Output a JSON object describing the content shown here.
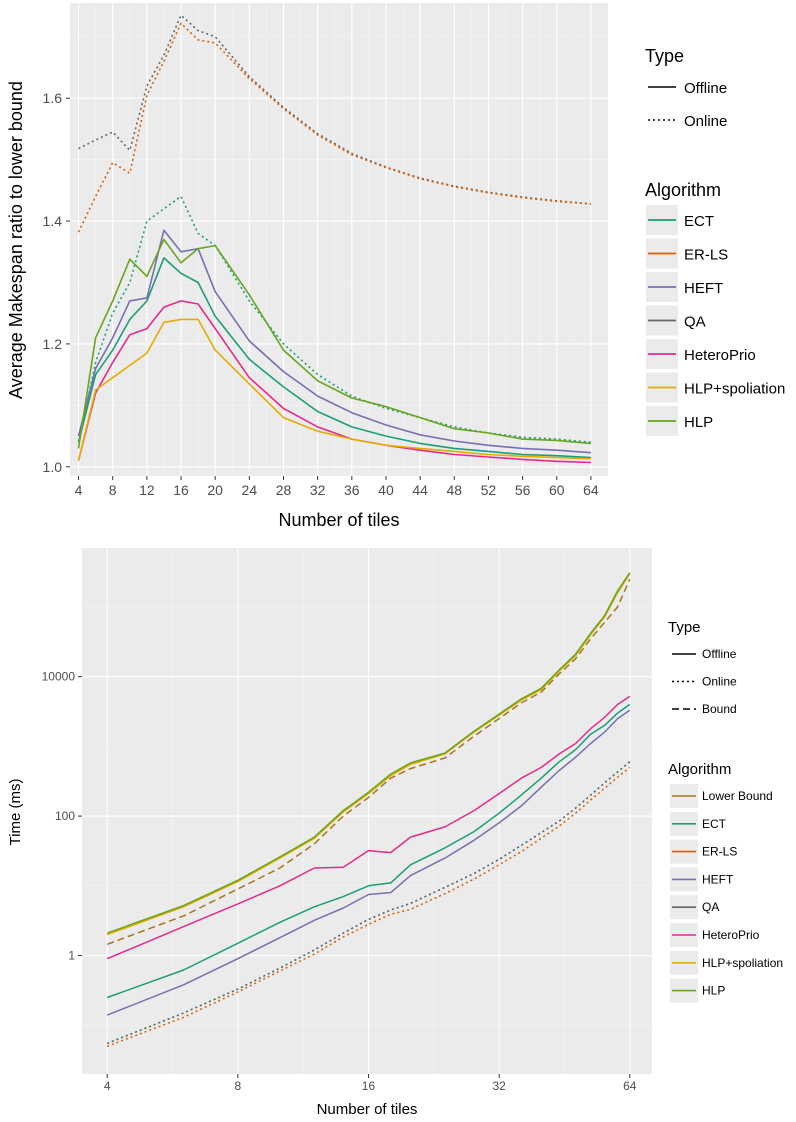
{
  "colors": {
    "panel_bg": "#ebebeb",
    "grid_major": "#ffffff",
    "grid_minor": "#f5f5f5",
    "text": "#000000",
    "tick_text": "#4d4d4d",
    "Lower Bound": "#a6761d",
    "ECT": "#1b9e77",
    "ER-LS": "#d95f02",
    "HEFT": "#7570b3",
    "QA": "#666666",
    "HeteroPrio": "#e7298a",
    "HLP+spoliation": "#e6ab02",
    "HLP": "#66a61e"
  },
  "chart_data": [
    {
      "type": "line",
      "xlabel": "Number of tiles",
      "ylabel": "Average Makespan ratio to lower bound",
      "x_ticks": [
        "4",
        "8",
        "12",
        "16",
        "20",
        "24",
        "28",
        "32",
        "36",
        "40",
        "44",
        "48",
        "52",
        "56",
        "60",
        "64"
      ],
      "x_range": [
        3,
        66
      ],
      "y_ticks": [
        "1.0",
        "1.2",
        "1.4",
        "1.6"
      ],
      "y_range": [
        0.985,
        1.755
      ],
      "grid": true,
      "legend_position": "right",
      "legend_type": {
        "title": "Type",
        "items": [
          {
            "label": "Offline",
            "dash": "solid"
          },
          {
            "label": "Online",
            "dash": "dotted"
          }
        ]
      },
      "legend_algorithm": {
        "title": "Algorithm",
        "items": [
          "ECT",
          "ER-LS",
          "HEFT",
          "QA",
          "HeteroPrio",
          "HLP+spoliation",
          "HLP"
        ]
      },
      "series": [
        {
          "name": "QA",
          "type": "Online",
          "x": [
            4,
            6,
            8,
            10,
            12,
            14,
            16,
            18,
            20,
            24,
            28,
            32,
            36,
            40,
            44,
            48,
            52,
            56,
            60,
            64
          ],
          "y": [
            1.518,
            1.532,
            1.545,
            1.515,
            1.62,
            1.67,
            1.735,
            1.71,
            1.7,
            1.635,
            1.585,
            1.542,
            1.51,
            1.488,
            1.47,
            1.457,
            1.447,
            1.439,
            1.433,
            1.428
          ]
        },
        {
          "name": "ER-LS",
          "type": "Online",
          "x": [
            4,
            6,
            8,
            10,
            12,
            14,
            16,
            18,
            20,
            24,
            28,
            32,
            36,
            40,
            44,
            48,
            52,
            56,
            60,
            64
          ],
          "y": [
            1.382,
            1.44,
            1.495,
            1.478,
            1.605,
            1.66,
            1.722,
            1.695,
            1.69,
            1.632,
            1.583,
            1.54,
            1.508,
            1.487,
            1.469,
            1.456,
            1.446,
            1.438,
            1.432,
            1.428
          ]
        },
        {
          "name": "ECT",
          "type": "Online",
          "x": [
            4,
            6,
            8,
            10,
            12,
            14,
            16,
            18,
            20,
            24,
            28,
            32,
            36,
            40,
            44,
            48,
            52,
            56,
            60,
            64
          ],
          "y": [
            1.04,
            1.17,
            1.25,
            1.3,
            1.4,
            1.42,
            1.44,
            1.38,
            1.36,
            1.27,
            1.2,
            1.15,
            1.115,
            1.095,
            1.08,
            1.065,
            1.055,
            1.048,
            1.045,
            1.04
          ]
        },
        {
          "name": "ECT",
          "type": "Offline",
          "x": [
            4,
            6,
            8,
            10,
            12,
            14,
            16,
            18,
            20,
            24,
            28,
            32,
            36,
            40,
            44,
            48,
            52,
            56,
            60,
            64
          ],
          "y": [
            1.04,
            1.15,
            1.19,
            1.24,
            1.27,
            1.34,
            1.315,
            1.3,
            1.245,
            1.175,
            1.13,
            1.09,
            1.065,
            1.05,
            1.038,
            1.03,
            1.025,
            1.02,
            1.018,
            1.015
          ]
        },
        {
          "name": "HEFT",
          "type": "Offline",
          "x": [
            4,
            6,
            8,
            10,
            12,
            14,
            16,
            18,
            20,
            24,
            28,
            32,
            36,
            40,
            44,
            48,
            52,
            56,
            60,
            64
          ],
          "y": [
            1.05,
            1.16,
            1.21,
            1.27,
            1.275,
            1.385,
            1.35,
            1.355,
            1.285,
            1.205,
            1.155,
            1.115,
            1.088,
            1.068,
            1.052,
            1.042,
            1.035,
            1.03,
            1.027,
            1.023
          ]
        },
        {
          "name": "HeteroPrio",
          "type": "Offline",
          "x": [
            4,
            6,
            8,
            10,
            12,
            14,
            16,
            18,
            20,
            24,
            28,
            32,
            36,
            40,
            44,
            48,
            52,
            56,
            60,
            64
          ],
          "y": [
            1.01,
            1.12,
            1.17,
            1.215,
            1.225,
            1.26,
            1.27,
            1.265,
            1.225,
            1.145,
            1.095,
            1.065,
            1.045,
            1.035,
            1.027,
            1.02,
            1.016,
            1.012,
            1.009,
            1.007
          ]
        },
        {
          "name": "HLP+spoliation",
          "type": "Offline",
          "x": [
            4,
            6,
            8,
            10,
            12,
            14,
            16,
            18,
            20,
            24,
            28,
            32,
            36,
            40,
            44,
            48,
            52,
            56,
            60,
            64
          ],
          "y": [
            1.01,
            1.125,
            1.145,
            1.165,
            1.185,
            1.235,
            1.24,
            1.24,
            1.19,
            1.135,
            1.08,
            1.058,
            1.045,
            1.035,
            1.03,
            1.025,
            1.02,
            1.017,
            1.015,
            1.013
          ]
        },
        {
          "name": "HLP",
          "type": "Offline",
          "x": [
            4,
            6,
            8,
            10,
            12,
            14,
            16,
            18,
            20,
            24,
            28,
            32,
            36,
            40,
            44,
            48,
            52,
            56,
            60,
            64
          ],
          "y": [
            1.03,
            1.21,
            1.27,
            1.338,
            1.31,
            1.37,
            1.332,
            1.355,
            1.36,
            1.28,
            1.19,
            1.14,
            1.112,
            1.098,
            1.08,
            1.062,
            1.055,
            1.045,
            1.043,
            1.038
          ]
        }
      ]
    },
    {
      "type": "line",
      "xlabel": "Number of tiles",
      "ylabel": "Time (ms)",
      "log_x": true,
      "log_y": true,
      "x_ticks": [
        "4",
        "8",
        "16",
        "32",
        "64"
      ],
      "x_range": [
        3.5,
        72
      ],
      "y_ticks": [
        "1",
        "100",
        "10000"
      ],
      "y_range": [
        0.02,
        700000
      ],
      "grid": true,
      "legend_position": "right",
      "legend_type": {
        "title": "Type",
        "items": [
          {
            "label": "Offline",
            "dash": "solid"
          },
          {
            "label": "Online",
            "dash": "dotted"
          },
          {
            "label": "Bound",
            "dash": "dashed"
          }
        ]
      },
      "legend_algorithm": {
        "title": "Algorithm",
        "items": [
          "Lower Bound",
          "ECT",
          "ER-LS",
          "HEFT",
          "QA",
          "HeteroPrio",
          "HLP+spoliation",
          "HLP"
        ]
      },
      "series": [
        {
          "name": "HLP+spoliation",
          "type": "Offline",
          "x": [
            4,
            6,
            8,
            10,
            12,
            14,
            16,
            18,
            20,
            24,
            28,
            32,
            36,
            40,
            44,
            48,
            52,
            56,
            60,
            64
          ],
          "y": [
            2.0,
            5.0,
            11.5,
            25,
            48,
            115,
            210,
            380,
            550,
            780,
            1600,
            2800,
            4600,
            6500,
            12000,
            20000,
            40000,
            72000,
            160000,
            300000
          ]
        },
        {
          "name": "HLP",
          "type": "Offline",
          "x": [
            4,
            6,
            8,
            10,
            12,
            14,
            16,
            18,
            20,
            24,
            28,
            32,
            36,
            40,
            44,
            48,
            52,
            56,
            60,
            64
          ],
          "y": [
            2.1,
            5.2,
            12,
            26,
            50,
            120,
            220,
            400,
            580,
            800,
            1650,
            2900,
            4800,
            6800,
            12500,
            21000,
            42000,
            75000,
            170000,
            310000
          ]
        },
        {
          "name": "Lower Bound",
          "type": "Bound",
          "x": [
            4,
            6,
            8,
            10,
            12,
            14,
            16,
            18,
            20,
            24,
            28,
            32,
            36,
            40,
            44,
            48,
            52,
            56,
            60,
            64
          ],
          "y": [
            1.45,
            3.7,
            9,
            18,
            40,
            100,
            185,
            350,
            480,
            680,
            1400,
            2500,
            4200,
            6000,
            11000,
            18000,
            35000,
            60000,
            100000,
            250000
          ]
        },
        {
          "name": "HeteroPrio",
          "type": "Offline",
          "x": [
            4,
            6,
            8,
            10,
            12,
            14,
            16,
            18,
            20,
            24,
            28,
            32,
            36,
            40,
            44,
            48,
            52,
            56,
            60,
            64
          ],
          "y": [
            0.9,
            2.6,
            5.5,
            10,
            18,
            18.5,
            32,
            30,
            50,
            70,
            120,
            210,
            350,
            500,
            780,
            1100,
            1800,
            2600,
            4000,
            5200
          ]
        },
        {
          "name": "ECT",
          "type": "Offline",
          "x": [
            4,
            6,
            8,
            10,
            12,
            14,
            16,
            18,
            20,
            24,
            28,
            32,
            36,
            40,
            44,
            48,
            52,
            56,
            60,
            64
          ],
          "y": [
            0.25,
            0.62,
            1.5,
            3,
            5,
            7,
            10,
            11,
            20,
            35,
            60,
            110,
            200,
            350,
            600,
            900,
            1500,
            2000,
            3000,
            4000
          ]
        },
        {
          "name": "HEFT",
          "type": "Offline",
          "x": [
            4,
            6,
            8,
            10,
            12,
            14,
            16,
            18,
            20,
            24,
            28,
            32,
            36,
            40,
            44,
            48,
            52,
            56,
            60,
            64
          ],
          "y": [
            0.14,
            0.38,
            0.9,
            1.8,
            3.2,
            4.8,
            7.5,
            8,
            14,
            25,
            45,
            80,
            140,
            260,
            450,
            700,
            1100,
            1600,
            2500,
            3300
          ]
        },
        {
          "name": "ECT",
          "type": "Online",
          "x": [
            4,
            6,
            8,
            10,
            12,
            14,
            16,
            18,
            20,
            24,
            28,
            32,
            36,
            40,
            44,
            48,
            52,
            56,
            60,
            64
          ],
          "y": [
            0.055,
            0.15,
            0.33,
            0.66,
            1.2,
            2.1,
            3.3,
            4.5,
            5.6,
            9.5,
            15,
            24,
            38,
            58,
            85,
            130,
            200,
            300,
            430,
            600
          ]
        },
        {
          "name": "QA",
          "type": "Online",
          "x": [
            4,
            6,
            8,
            10,
            12,
            14,
            16,
            18,
            20,
            24,
            28,
            32,
            36,
            40,
            44,
            48,
            52,
            56,
            60,
            64
          ],
          "y": [
            0.055,
            0.15,
            0.33,
            0.66,
            1.2,
            2.1,
            3.3,
            4.5,
            5.6,
            9.5,
            15,
            24,
            38,
            58,
            85,
            130,
            200,
            300,
            430,
            600
          ]
        },
        {
          "name": "ER-LS",
          "type": "Online",
          "x": [
            4,
            6,
            8,
            10,
            12,
            14,
            16,
            18,
            20,
            24,
            28,
            32,
            36,
            40,
            44,
            48,
            52,
            56,
            60,
            64
          ],
          "y": [
            0.05,
            0.13,
            0.3,
            0.6,
            1.05,
            1.85,
            2.8,
            3.9,
            4.6,
            7.7,
            12.5,
            20,
            31,
            48,
            72,
            110,
            170,
            250,
            360,
            500
          ]
        }
      ]
    }
  ]
}
